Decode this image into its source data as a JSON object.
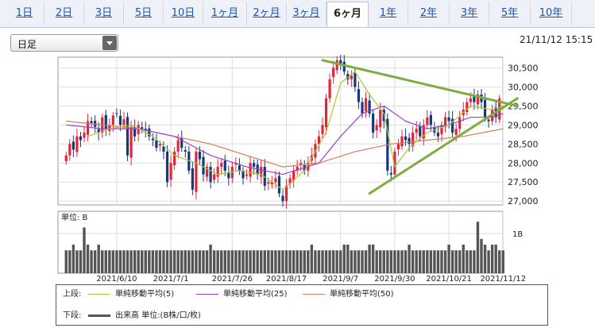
{
  "tabs": [
    {
      "label": "1日",
      "active": false
    },
    {
      "label": "2日",
      "active": false
    },
    {
      "label": "3日",
      "active": false
    },
    {
      "label": "5日",
      "active": false
    },
    {
      "label": "10日",
      "active": false
    },
    {
      "label": "1ヶ月",
      "active": false
    },
    {
      "label": "2ヶ月",
      "active": false
    },
    {
      "label": "3ヶ月",
      "active": false
    },
    {
      "label": "6ヶ月",
      "active": true
    },
    {
      "label": "1年",
      "active": false
    },
    {
      "label": "2年",
      "active": false
    },
    {
      "label": "3年",
      "active": false
    },
    {
      "label": "5年",
      "active": false
    },
    {
      "label": "10年",
      "active": false
    }
  ],
  "period_select": {
    "value": "日足"
  },
  "timestamp": "21/11/12 15:15",
  "colors": {
    "up": "#e2263a",
    "down": "#17387c",
    "ma5": "#a8c73a",
    "ma25": "#9b3fd0",
    "ma50": "#d87a5e",
    "volume": "#555555",
    "trend": "#7fab3f"
  },
  "chart_data": {
    "type": "candlestick",
    "price_axis": {
      "ticks": [
        27000,
        27500,
        28000,
        28500,
        29000,
        29500,
        30000,
        30500
      ],
      "tick_labels": [
        "27,000",
        "27,500",
        "28,000",
        "28,500",
        "29,000",
        "29,500",
        "30,000",
        "30,500"
      ],
      "range": [
        26900,
        30780
      ]
    },
    "x_labels": [
      "2021/6/10",
      "2021/7/1",
      "2021/7/26",
      "2021/8/17",
      "2021/9/7",
      "2021/9/30",
      "2021/10/21",
      "2021/11/12"
    ],
    "x_label_index": [
      14,
      29,
      46,
      61,
      76,
      91,
      106,
      121
    ],
    "series_close": [
      28200,
      28500,
      28350,
      28700,
      28600,
      28800,
      29100,
      29050,
      28950,
      28800,
      29200,
      28900,
      29000,
      29250,
      29300,
      29000,
      29150,
      28200,
      28950,
      28700,
      29000,
      28900,
      28850,
      28700,
      28600,
      28400,
      28500,
      28300,
      27500,
      28000,
      28300,
      28600,
      28400,
      28300,
      27800,
      27300,
      28300,
      28100,
      27700,
      27900,
      27500,
      27700,
      27900,
      28000,
      27800,
      27600,
      27900,
      28000,
      27800,
      27600,
      27700,
      28000,
      27900,
      27700,
      27900,
      27400,
      27500,
      27500,
      27600,
      27200,
      27000,
      27400,
      27600,
      27800,
      27900,
      28000,
      27800,
      28000,
      28200,
      28500,
      28700,
      29000,
      29700,
      30200,
      30500,
      30700,
      30600,
      30400,
      30200,
      30300,
      30000,
      29600,
      29300,
      29700,
      29300,
      28800,
      29000,
      29400,
      29100,
      27800,
      27700,
      28300,
      28500,
      28700,
      28600,
      28500,
      28800,
      28900,
      28700,
      29000,
      29200,
      29000,
      28800,
      28700,
      29000,
      29200,
      29100,
      28800,
      28900,
      29200,
      29400,
      29600,
      29700,
      29600,
      29800,
      29600,
      29200,
      29100,
      29400,
      29200,
      29700
    ],
    "ma5_line": [
      [
        6,
        28700
      ],
      [
        12,
        28900
      ],
      [
        18,
        29000
      ],
      [
        24,
        28700
      ],
      [
        30,
        28200
      ],
      [
        36,
        28000
      ],
      [
        42,
        27700
      ],
      [
        48,
        27800
      ],
      [
        54,
        27700
      ],
      [
        60,
        27300
      ],
      [
        66,
        27800
      ],
      [
        72,
        28800
      ],
      [
        76,
        30100
      ],
      [
        80,
        30400
      ],
      [
        84,
        29800
      ],
      [
        88,
        29300
      ],
      [
        91,
        27900
      ],
      [
        95,
        28400
      ],
      [
        100,
        28800
      ],
      [
        106,
        29000
      ],
      [
        112,
        29500
      ],
      [
        118,
        29400
      ],
      [
        121,
        29500
      ]
    ],
    "ma25_line": [
      [
        0,
        29000
      ],
      [
        10,
        28900
      ],
      [
        20,
        28900
      ],
      [
        30,
        28700
      ],
      [
        40,
        28200
      ],
      [
        50,
        27900
      ],
      [
        60,
        27700
      ],
      [
        70,
        28000
      ],
      [
        76,
        28700
      ],
      [
        82,
        29300
      ],
      [
        88,
        29500
      ],
      [
        94,
        29100
      ],
      [
        100,
        28900
      ],
      [
        106,
        29000
      ],
      [
        112,
        29200
      ],
      [
        118,
        29200
      ],
      [
        121,
        29300
      ]
    ],
    "ma50_line": [
      [
        0,
        29100
      ],
      [
        10,
        29000
      ],
      [
        20,
        28900
      ],
      [
        30,
        28700
      ],
      [
        40,
        28500
      ],
      [
        50,
        28200
      ],
      [
        60,
        27900
      ],
      [
        70,
        28000
      ],
      [
        80,
        28300
      ],
      [
        90,
        28500
      ],
      [
        100,
        28600
      ],
      [
        110,
        28700
      ],
      [
        121,
        28900
      ]
    ],
    "trendlines": [
      [
        [
          71,
          30700
        ],
        [
          125,
          29500
        ]
      ],
      [
        [
          84,
          27200
        ],
        [
          125,
          29700
        ]
      ]
    ],
    "volume_axis": {
      "label": "単位: B",
      "tick_label": "1B"
    },
    "volume_relative": [
      0.4,
      0.4,
      0.5,
      0.4,
      0.4,
      0.8,
      0.5,
      0.4,
      0.4,
      0.5,
      0.4,
      0.4,
      0.4,
      0.4,
      0.4,
      0.4,
      0.4,
      0.4,
      0.4,
      0.4,
      0.4,
      0.4,
      0.4,
      0.4,
      0.4,
      0.4,
      0.4,
      0.4,
      0.4,
      0.4,
      0.4,
      0.4,
      0.4,
      0.4,
      0.4,
      0.4,
      0.4,
      0.4,
      0.4,
      0.4,
      0.5,
      0.4,
      0.4,
      0.4,
      0.4,
      0.4,
      0.4,
      0.4,
      0.4,
      0.4,
      0.4,
      0.4,
      0.4,
      0.4,
      0.4,
      0.4,
      0.4,
      0.4,
      0.4,
      0.4,
      0.4,
      0.4,
      0.4,
      0.4,
      0.4,
      0.4,
      0.4,
      0.4,
      0.5,
      0.4,
      0.4,
      0.4,
      0.4,
      0.4,
      0.4,
      0.4,
      0.4,
      0.5,
      0.5,
      0.4,
      0.4,
      0.4,
      0.4,
      0.4,
      0.5,
      0.5,
      0.4,
      0.4,
      0.4,
      0.4,
      0.4,
      0.4,
      0.4,
      0.4,
      0.4,
      0.5,
      0.4,
      0.4,
      0.4,
      0.4,
      0.4,
      0.4,
      0.4,
      0.4,
      0.4,
      0.4,
      0.5,
      0.4,
      0.4,
      0.4,
      0.5,
      0.4,
      0.4,
      0.4,
      0.9,
      0.6,
      0.5,
      0.4,
      0.5,
      0.5,
      0.4,
      0.4
    ],
    "legend": [
      {
        "section": "上段:",
        "items": [
          {
            "label": "単純移動平均(5)",
            "color": "#a8c73a"
          },
          {
            "label": "単純移動平均(25)",
            "color": "#9b3fd0"
          },
          {
            "label": "単純移動平均(50)",
            "color": "#d87a5e"
          }
        ]
      },
      {
        "section": "下段:",
        "items": [
          {
            "label": "出来高 単位:(B株/口/枚)",
            "color": "#555555"
          }
        ]
      }
    ]
  }
}
